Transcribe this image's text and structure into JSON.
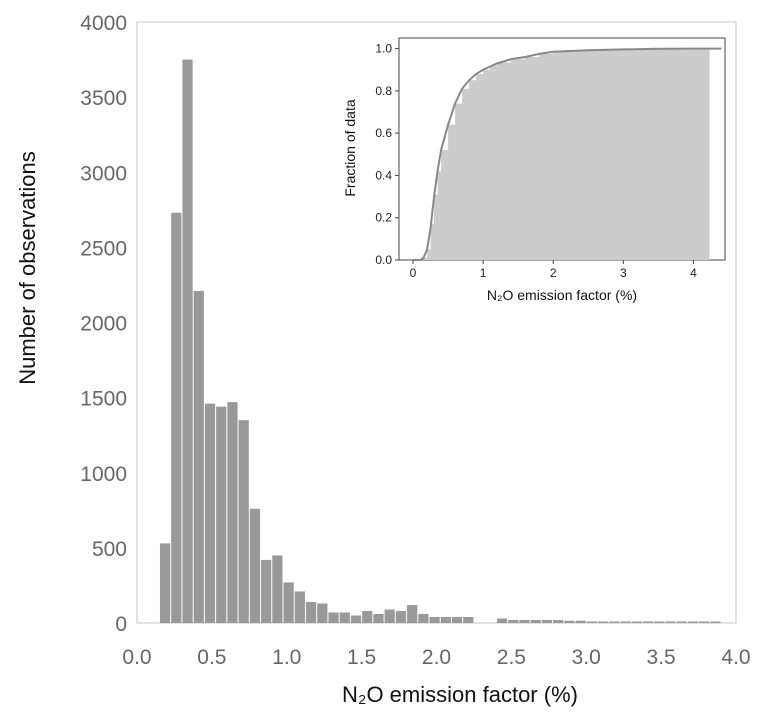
{
  "chart_data": [
    {
      "type": "bar",
      "role": "main-histogram",
      "xlabel": "N₂O emission factor (%)",
      "ylabel": "Number of  observations",
      "xlim": [
        0.0,
        4.0
      ],
      "ylim": [
        0,
        4000
      ],
      "xticks": [
        "0.0",
        "0.5",
        "1.0",
        "1.5",
        "2.0",
        "2.5",
        "3.0",
        "3.5",
        "4.0"
      ],
      "yticks": [
        "0",
        "500",
        "1000",
        "1500",
        "2000",
        "2500",
        "3000",
        "3500",
        "4000"
      ],
      "bin_width": 0.075,
      "bin_starts": [
        0.15,
        0.225,
        0.3,
        0.375,
        0.45,
        0.525,
        0.6,
        0.675,
        0.75,
        0.825,
        0.9,
        0.975,
        1.05,
        1.125,
        1.2,
        1.275,
        1.35,
        1.425,
        1.5,
        1.575,
        1.65,
        1.725,
        1.8,
        1.875,
        1.95,
        2.025,
        2.1,
        2.175,
        2.25,
        2.325,
        2.4,
        2.475,
        2.55,
        2.625,
        2.7,
        2.775,
        2.85,
        2.925,
        3.0,
        3.075,
        3.15,
        3.225,
        3.3,
        3.375,
        3.45,
        3.525,
        3.6,
        3.675,
        3.75,
        3.825
      ],
      "values": [
        530,
        2730,
        3750,
        2210,
        1460,
        1440,
        1470,
        1350,
        760,
        420,
        450,
        270,
        210,
        140,
        130,
        70,
        70,
        50,
        80,
        60,
        90,
        80,
        120,
        60,
        40,
        40,
        40,
        40,
        0,
        0,
        30,
        20,
        20,
        20,
        20,
        20,
        15,
        15,
        10,
        10,
        10,
        10,
        10,
        10,
        10,
        10,
        10,
        10,
        10,
        10
      ],
      "bar_color": "#999999",
      "grid": false
    },
    {
      "type": "area",
      "role": "inset-cumulative",
      "xlabel": "N₂O emission factor (%)",
      "ylabel": "Fraction of data",
      "xlim": [
        -0.2,
        4.45
      ],
      "ylim": [
        0.0,
        1.05
      ],
      "xticks": [
        "0",
        "1",
        "2",
        "3",
        "4"
      ],
      "yticks": [
        "0.0",
        "0.2",
        "0.4",
        "0.6",
        "0.8",
        "1.0"
      ],
      "cdf_x": [
        0,
        0.15,
        0.2,
        0.25,
        0.3,
        0.35,
        0.4,
        0.5,
        0.6,
        0.7,
        0.8,
        0.9,
        1.0,
        1.1,
        1.2,
        1.4,
        1.6,
        1.8,
        2.0,
        2.3,
        2.6,
        3.0,
        3.5,
        4.0,
        4.23
      ],
      "cdf_y": [
        0,
        0.01,
        0.05,
        0.17,
        0.31,
        0.42,
        0.52,
        0.64,
        0.74,
        0.81,
        0.85,
        0.88,
        0.9,
        0.92,
        0.935,
        0.95,
        0.96,
        0.975,
        0.985,
        0.99,
        0.995,
        0.997,
        0.999,
        1.0,
        1.0
      ],
      "line_x": [
        0,
        0.1,
        0.15,
        0.2,
        0.25,
        0.3,
        0.35,
        0.4,
        0.5,
        0.6,
        0.7,
        0.8,
        0.9,
        1.0,
        1.2,
        1.4,
        1.6,
        1.8,
        2.0,
        2.5,
        3.0,
        3.5,
        4.0,
        4.4
      ],
      "line_y": [
        0,
        0.0,
        0.01,
        0.05,
        0.15,
        0.3,
        0.42,
        0.52,
        0.64,
        0.74,
        0.81,
        0.85,
        0.88,
        0.9,
        0.93,
        0.95,
        0.96,
        0.975,
        0.985,
        0.992,
        0.996,
        0.999,
        1.0,
        1.0
      ],
      "fill_color": "#cccccc",
      "line_color": "#888888",
      "grid": false
    }
  ]
}
